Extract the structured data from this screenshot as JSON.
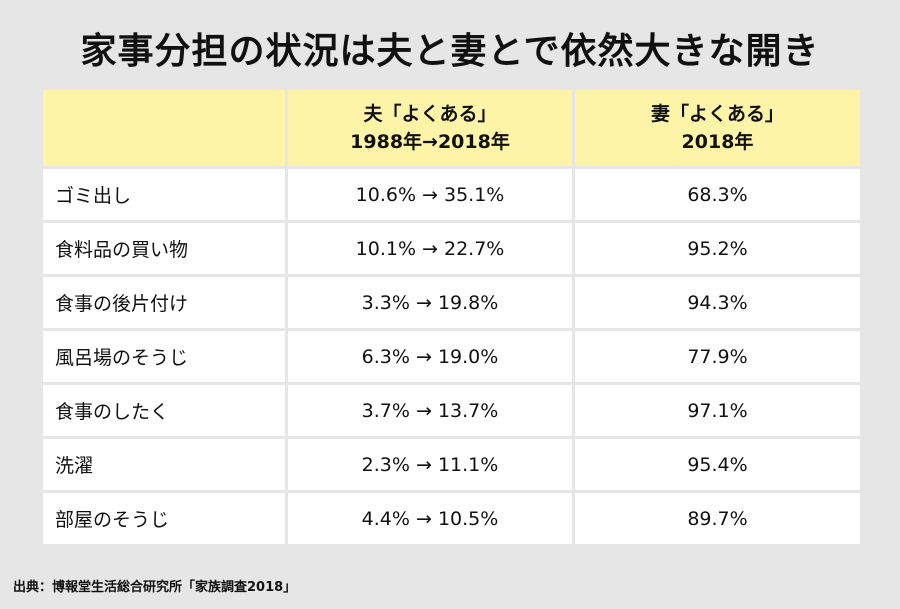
{
  "title": "家事分担の状況は夫と妻とで依然大きな開き",
  "chart_data": {
    "type": "table",
    "columns": [
      "",
      "夫「よくある」\n1988年→2018年",
      "妻「よくある」\n2018年"
    ],
    "rows": [
      {
        "item": "ゴミ出し",
        "husband": "10.6% → 35.1%",
        "wife": "68.3%"
      },
      {
        "item": "食料品の買い物",
        "husband": "10.1% → 22.7%",
        "wife": "95.2%"
      },
      {
        "item": "食事の後片付け",
        "husband": "3.3% → 19.8%",
        "wife": "94.3%"
      },
      {
        "item": "風呂場のそうじ",
        "husband": "6.3% → 19.0%",
        "wife": "77.9%"
      },
      {
        "item": "食事のしたく",
        "husband": "3.7% → 13.7%",
        "wife": "97.1%"
      },
      {
        "item": "洗濯",
        "husband": "2.3% → 11.1%",
        "wife": "95.4%"
      },
      {
        "item": "部屋のそうじ",
        "husband": "4.4% → 10.5%",
        "wife": "89.7%"
      }
    ]
  },
  "source": "出典：博報堂生活総合研究所「家族調査2018」",
  "colors": {
    "background": "#e6e6e6",
    "header_fill": "#fdf4a8",
    "cell_fill": "#ffffff"
  }
}
